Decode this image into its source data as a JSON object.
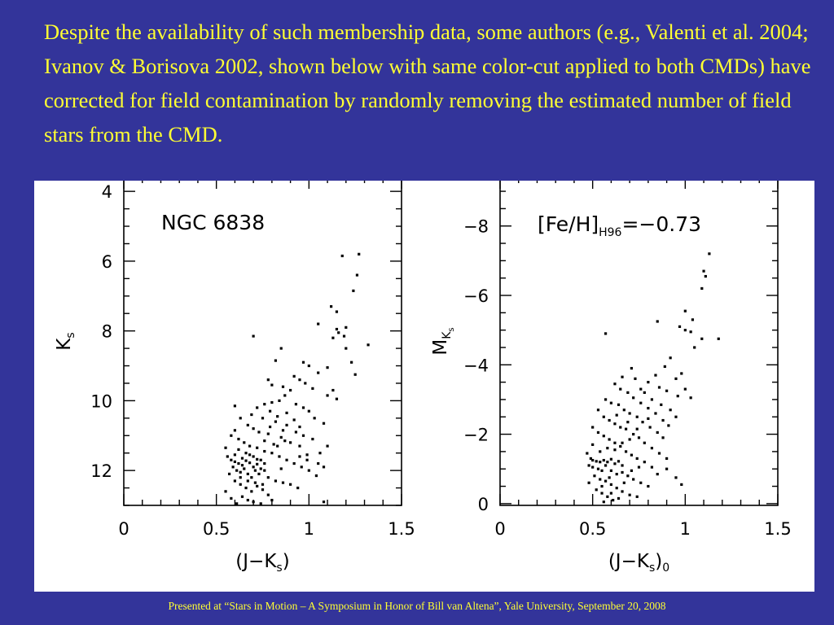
{
  "slide": {
    "body_text": "Despite the availability of such membership data, some authors (e.g., Valenti et al. 2004; Ivanov & Borisova 2002, shown below with same color-cut applied to both CMDs) have corrected for field contamination by randomly removing the estimated number of field stars from the CMD.",
    "footer": "Presented at “Stars in Motion – A Symposium in Honor of Bill van Altena”, Yale University, September 20, 2008"
  },
  "colors": {
    "background": "#33349a",
    "text": "#ffff33",
    "figure_bg": "#ffffff",
    "ink": "#000000"
  },
  "chart_data": [
    {
      "type": "scatter",
      "annotation": "NGC 6838",
      "xlabel_main": "(J−K",
      "xlabel_sub": "s",
      "xlabel_close": ")",
      "xlabel_after": "",
      "ylabel_main": "K",
      "ylabel_sub": "s",
      "xlim": [
        0,
        1.5
      ],
      "ylim": [
        13,
        3.6
      ],
      "y_inverted": true,
      "x_ticks": [
        0,
        0.5,
        1,
        1.5
      ],
      "x_tick_labels": [
        "0",
        "0.5",
        "1",
        "1.5"
      ],
      "y_ticks": [
        4,
        6,
        8,
        10,
        12
      ],
      "y_tick_labels": [
        "4",
        "6",
        "8",
        "10",
        "12"
      ],
      "grid": false,
      "points": [
        [
          1.18,
          5.85
        ],
        [
          1.27,
          5.8
        ],
        [
          1.26,
          6.4
        ],
        [
          1.24,
          6.85
        ],
        [
          1.12,
          7.3
        ],
        [
          1.15,
          7.45
        ],
        [
          1.05,
          7.8
        ],
        [
          1.15,
          7.95
        ],
        [
          1.2,
          7.9
        ],
        [
          1.16,
          8.05
        ],
        [
          1.19,
          8.15
        ],
        [
          1.13,
          8.2
        ],
        [
          1.32,
          8.4
        ],
        [
          1.2,
          8.5
        ],
        [
          0.7,
          8.15
        ],
        [
          0.85,
          8.5
        ],
        [
          1.23,
          8.9
        ],
        [
          1.25,
          9.25
        ],
        [
          0.82,
          8.85
        ],
        [
          0.97,
          8.9
        ],
        [
          1.0,
          9.0
        ],
        [
          1.1,
          9.05
        ],
        [
          1.05,
          9.2
        ],
        [
          0.92,
          9.3
        ],
        [
          0.95,
          9.4
        ],
        [
          0.98,
          9.5
        ],
        [
          1.02,
          9.65
        ],
        [
          1.13,
          9.7
        ],
        [
          0.78,
          9.4
        ],
        [
          0.8,
          9.55
        ],
        [
          0.86,
          9.6
        ],
        [
          0.9,
          9.7
        ],
        [
          1.1,
          9.85
        ],
        [
          1.15,
          9.95
        ],
        [
          0.87,
          9.85
        ],
        [
          0.84,
          10.0
        ],
        [
          0.8,
          10.05
        ],
        [
          0.93,
          10.1
        ],
        [
          0.97,
          10.2
        ],
        [
          1.0,
          10.3
        ],
        [
          1.03,
          10.5
        ],
        [
          1.08,
          10.65
        ],
        [
          0.76,
          10.1
        ],
        [
          0.72,
          10.2
        ],
        [
          0.79,
          10.3
        ],
        [
          0.88,
          10.35
        ],
        [
          0.83,
          10.45
        ],
        [
          0.92,
          10.55
        ],
        [
          0.95,
          10.75
        ],
        [
          0.69,
          10.4
        ],
        [
          0.75,
          10.5
        ],
        [
          0.82,
          10.6
        ],
        [
          0.88,
          10.7
        ],
        [
          0.93,
          10.9
        ],
        [
          0.97,
          11.0
        ],
        [
          1.02,
          11.1
        ],
        [
          0.6,
          10.15
        ],
        [
          0.63,
          10.5
        ],
        [
          0.67,
          10.7
        ],
        [
          0.7,
          10.8
        ],
        [
          0.73,
          10.9
        ],
        [
          0.78,
          10.95
        ],
        [
          0.85,
          11.05
        ],
        [
          0.9,
          11.2
        ],
        [
          0.95,
          11.3
        ],
        [
          0.99,
          11.55
        ],
        [
          1.05,
          11.8
        ],
        [
          1.08,
          11.9
        ],
        [
          0.58,
          11.0
        ],
        [
          0.62,
          11.1
        ],
        [
          0.65,
          11.2
        ],
        [
          0.68,
          11.3
        ],
        [
          0.72,
          11.35
        ],
        [
          0.76,
          11.45
        ],
        [
          0.8,
          11.5
        ],
        [
          0.84,
          11.6
        ],
        [
          0.88,
          11.7
        ],
        [
          0.92,
          11.8
        ],
        [
          0.96,
          11.9
        ],
        [
          1.0,
          12.0
        ],
        [
          1.04,
          12.15
        ],
        [
          0.56,
          11.6
        ],
        [
          0.58,
          11.7
        ],
        [
          0.6,
          11.75
        ],
        [
          0.62,
          11.8
        ],
        [
          0.64,
          11.85
        ],
        [
          0.66,
          11.72
        ],
        [
          0.68,
          11.78
        ],
        [
          0.7,
          11.9
        ],
        [
          0.72,
          11.82
        ],
        [
          0.74,
          11.95
        ],
        [
          0.76,
          12.0
        ],
        [
          0.59,
          11.9
        ],
        [
          0.61,
          12.0
        ],
        [
          0.63,
          12.05
        ],
        [
          0.65,
          11.95
        ],
        [
          0.67,
          12.1
        ],
        [
          0.69,
          12.2
        ],
        [
          0.71,
          12.0
        ],
        [
          0.73,
          12.1
        ],
        [
          0.78,
          12.2
        ],
        [
          0.82,
          12.3
        ],
        [
          0.86,
          12.35
        ],
        [
          0.9,
          12.4
        ],
        [
          0.94,
          12.5
        ],
        [
          0.6,
          12.3
        ],
        [
          0.63,
          12.4
        ],
        [
          0.66,
          12.5
        ],
        [
          0.69,
          12.6
        ],
        [
          0.72,
          12.45
        ],
        [
          0.75,
          12.55
        ],
        [
          0.78,
          12.7
        ],
        [
          0.64,
          12.75
        ],
        [
          0.67,
          12.85
        ],
        [
          0.7,
          12.9
        ],
        [
          0.74,
          12.95
        ],
        [
          0.8,
          12.85
        ],
        [
          0.55,
          12.6
        ],
        [
          0.58,
          12.8
        ],
        [
          0.61,
          12.95
        ],
        [
          1.08,
          12.9
        ],
        [
          0.62,
          11.4
        ],
        [
          0.66,
          11.5
        ],
        [
          0.7,
          11.6
        ],
        [
          0.74,
          11.7
        ],
        [
          0.6,
          11.55
        ],
        [
          0.64,
          11.65
        ],
        [
          0.68,
          11.55
        ],
        [
          0.72,
          11.68
        ],
        [
          0.76,
          11.8
        ],
        [
          0.57,
          12.1
        ],
        [
          0.63,
          12.2
        ],
        [
          0.67,
          12.3
        ],
        [
          0.71,
          12.35
        ],
        [
          0.75,
          12.4
        ],
        [
          0.85,
          11.95
        ],
        [
          0.83,
          11.3
        ],
        [
          0.87,
          11.15
        ],
        [
          0.95,
          11.6
        ],
        [
          0.99,
          11.7
        ],
        [
          1.06,
          11.5
        ],
        [
          1.1,
          11.3
        ],
        [
          0.79,
          10.75
        ],
        [
          0.86,
          10.85
        ],
        [
          0.76,
          11.15
        ],
        [
          0.81,
          11.25
        ],
        [
          0.6,
          10.85
        ],
        [
          0.55,
          11.35
        ]
      ]
    },
    {
      "type": "scatter",
      "annotation_main": "[Fe/H]",
      "annotation_sub": "H96",
      "annotation_rest": "=−0.73",
      "xlabel_main": "(J−K",
      "xlabel_sub": "s",
      "xlabel_close": ")",
      "xlabel_after": "0",
      "ylabel_main": "M",
      "ylabel_sub": "K",
      "ylabel_subsub": "s",
      "xlim": [
        0,
        1.5
      ],
      "ylim": [
        0.05,
        -9.4
      ],
      "y_inverted": true,
      "x_ticks": [
        0,
        0.5,
        1,
        1.5
      ],
      "x_tick_labels": [
        "0",
        "0.5",
        "1",
        "1.5"
      ],
      "y_ticks": [
        -8,
        -6,
        -4,
        -2,
        0
      ],
      "y_tick_labels": [
        "−8",
        "−6",
        "−4",
        "−2",
        "0"
      ],
      "grid": false,
      "points": [
        [
          1.13,
          -7.2
        ],
        [
          1.1,
          -6.7
        ],
        [
          1.11,
          -6.55
        ],
        [
          1.09,
          -6.2
        ],
        [
          1.0,
          -5.55
        ],
        [
          1.04,
          -5.3
        ],
        [
          0.97,
          -5.1
        ],
        [
          1.0,
          -5.0
        ],
        [
          1.03,
          -4.95
        ],
        [
          1.09,
          -4.75
        ],
        [
          1.18,
          -4.75
        ],
        [
          1.05,
          -4.5
        ],
        [
          0.85,
          -5.25
        ],
        [
          0.57,
          -4.9
        ],
        [
          0.92,
          -4.2
        ],
        [
          0.89,
          -3.95
        ],
        [
          0.84,
          -3.7
        ],
        [
          0.8,
          -3.5
        ],
        [
          0.76,
          -3.3
        ],
        [
          0.95,
          -3.6
        ],
        [
          0.98,
          -3.75
        ],
        [
          1.0,
          -3.3
        ],
        [
          1.03,
          -3.05
        ],
        [
          0.71,
          -3.9
        ],
        [
          0.66,
          -3.65
        ],
        [
          0.73,
          -3.6
        ],
        [
          0.78,
          -3.2
        ],
        [
          0.82,
          -3.0
        ],
        [
          0.87,
          -2.85
        ],
        [
          0.92,
          -2.7
        ],
        [
          0.95,
          -2.5
        ],
        [
          0.62,
          -3.45
        ],
        [
          0.65,
          -3.3
        ],
        [
          0.69,
          -3.2
        ],
        [
          0.72,
          -3.05
        ],
        [
          0.76,
          -2.9
        ],
        [
          0.8,
          -2.75
        ],
        [
          0.84,
          -2.6
        ],
        [
          0.88,
          -2.4
        ],
        [
          0.91,
          -2.25
        ],
        [
          0.57,
          -3.0
        ],
        [
          0.6,
          -2.9
        ],
        [
          0.64,
          -2.85
        ],
        [
          0.67,
          -2.7
        ],
        [
          0.7,
          -2.6
        ],
        [
          0.74,
          -2.5
        ],
        [
          0.77,
          -2.35
        ],
        [
          0.81,
          -2.2
        ],
        [
          0.85,
          -2.05
        ],
        [
          0.88,
          -1.9
        ],
        [
          0.53,
          -2.7
        ],
        [
          0.56,
          -2.5
        ],
        [
          0.59,
          -2.4
        ],
        [
          0.62,
          -2.3
        ],
        [
          0.65,
          -2.2
        ],
        [
          0.68,
          -2.15
        ],
        [
          0.72,
          -2.0
        ],
        [
          0.75,
          -1.9
        ],
        [
          0.78,
          -1.75
        ],
        [
          0.82,
          -1.6
        ],
        [
          0.86,
          -1.45
        ],
        [
          0.9,
          -1.3
        ],
        [
          0.5,
          -2.2
        ],
        [
          0.53,
          -2.05
        ],
        [
          0.56,
          -1.95
        ],
        [
          0.59,
          -1.85
        ],
        [
          0.62,
          -1.75
        ],
        [
          0.65,
          -1.65
        ],
        [
          0.68,
          -1.5
        ],
        [
          0.71,
          -1.4
        ],
        [
          0.74,
          -1.3
        ],
        [
          0.78,
          -1.2
        ],
        [
          0.82,
          -1.05
        ],
        [
          0.47,
          -1.45
        ],
        [
          0.49,
          -1.3
        ],
        [
          0.5,
          -1.25
        ],
        [
          0.52,
          -1.22
        ],
        [
          0.54,
          -1.2
        ],
        [
          0.56,
          -1.25
        ],
        [
          0.58,
          -1.2
        ],
        [
          0.6,
          -1.28
        ],
        [
          0.62,
          -1.15
        ],
        [
          0.64,
          -1.22
        ],
        [
          0.66,
          -1.1
        ],
        [
          0.48,
          -1.1
        ],
        [
          0.5,
          -1.05
        ],
        [
          0.53,
          -1.0
        ],
        [
          0.55,
          -0.95
        ],
        [
          0.57,
          -1.1
        ],
        [
          0.6,
          -0.95
        ],
        [
          0.63,
          -0.85
        ],
        [
          0.66,
          -0.9
        ],
        [
          0.69,
          -0.8
        ],
        [
          0.72,
          -0.7
        ],
        [
          0.76,
          -0.6
        ],
        [
          0.8,
          -0.5
        ],
        [
          0.51,
          -0.8
        ],
        [
          0.54,
          -0.7
        ],
        [
          0.57,
          -0.65
        ],
        [
          0.6,
          -0.55
        ],
        [
          0.63,
          -0.45
        ],
        [
          0.66,
          -0.35
        ],
        [
          0.7,
          -0.25
        ],
        [
          0.74,
          -0.2
        ],
        [
          0.52,
          -0.4
        ],
        [
          0.55,
          -0.3
        ],
        [
          0.58,
          -0.2
        ],
        [
          0.61,
          -0.1
        ],
        [
          0.64,
          -0.15
        ],
        [
          0.56,
          -0.05
        ],
        [
          0.6,
          -0.3
        ],
        [
          0.48,
          -0.6
        ],
        [
          0.85,
          -0.85
        ],
        [
          0.9,
          -1.0
        ],
        [
          0.95,
          -0.75
        ],
        [
          0.98,
          -0.55
        ],
        [
          0.54,
          -1.5
        ],
        [
          0.58,
          -1.6
        ],
        [
          0.62,
          -1.55
        ],
        [
          0.66,
          -1.75
        ],
        [
          0.7,
          -1.85
        ],
        [
          0.5,
          -1.7
        ],
        [
          0.63,
          -2.55
        ],
        [
          0.69,
          -2.35
        ],
        [
          0.74,
          -2.15
        ],
        [
          0.8,
          -2.45
        ],
        [
          0.86,
          -3.35
        ],
        [
          0.9,
          -3.25
        ],
        [
          0.96,
          -3.1
        ],
        [
          0.55,
          -0.5
        ],
        [
          0.59,
          -0.75
        ],
        [
          0.67,
          -0.6
        ],
        [
          0.71,
          -0.95
        ],
        [
          0.75,
          -1.05
        ]
      ]
    }
  ]
}
